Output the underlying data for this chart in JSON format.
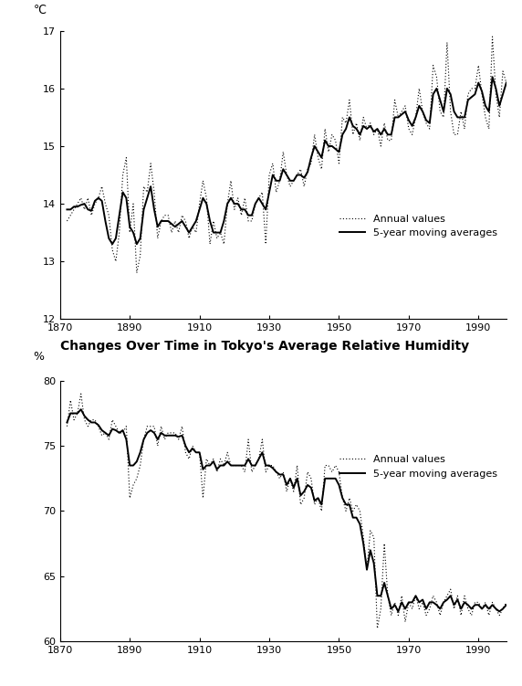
{
  "temp_years": [
    1872,
    1873,
    1874,
    1875,
    1876,
    1877,
    1878,
    1879,
    1880,
    1881,
    1882,
    1883,
    1884,
    1885,
    1886,
    1887,
    1888,
    1889,
    1890,
    1891,
    1892,
    1893,
    1894,
    1895,
    1896,
    1897,
    1898,
    1899,
    1900,
    1901,
    1902,
    1903,
    1904,
    1905,
    1906,
    1907,
    1908,
    1909,
    1910,
    1911,
    1912,
    1913,
    1914,
    1915,
    1916,
    1917,
    1918,
    1919,
    1920,
    1921,
    1922,
    1923,
    1924,
    1925,
    1926,
    1927,
    1928,
    1929,
    1930,
    1931,
    1932,
    1933,
    1934,
    1935,
    1936,
    1937,
    1938,
    1939,
    1940,
    1941,
    1942,
    1943,
    1944,
    1945,
    1946,
    1947,
    1948,
    1949,
    1950,
    1951,
    1952,
    1953,
    1954,
    1955,
    1956,
    1957,
    1958,
    1959,
    1960,
    1961,
    1962,
    1963,
    1964,
    1965,
    1966,
    1967,
    1968,
    1969,
    1970,
    1971,
    1972,
    1973,
    1974,
    1975,
    1976,
    1977,
    1978,
    1979,
    1980,
    1981,
    1982,
    1983,
    1984,
    1985,
    1986,
    1987,
    1988,
    1989,
    1990,
    1991,
    1992,
    1993,
    1994,
    1995,
    1996,
    1997,
    1998
  ],
  "temp_annual": [
    13.7,
    13.8,
    13.9,
    14.0,
    14.1,
    13.9,
    14.1,
    13.8,
    14.0,
    14.1,
    14.3,
    14.0,
    13.8,
    13.2,
    13.0,
    13.5,
    14.5,
    14.8,
    13.5,
    14.0,
    12.8,
    13.1,
    14.3,
    14.2,
    14.7,
    14.2,
    13.4,
    13.7,
    13.8,
    13.8,
    13.5,
    13.7,
    13.5,
    13.8,
    13.7,
    13.4,
    13.6,
    13.5,
    14.0,
    14.4,
    14.1,
    13.3,
    13.7,
    13.4,
    13.5,
    13.3,
    14.0,
    14.4,
    13.9,
    14.1,
    13.8,
    14.1,
    13.7,
    13.7,
    14.0,
    14.1,
    14.2,
    13.3,
    14.5,
    14.7,
    14.2,
    14.4,
    14.9,
    14.5,
    14.3,
    14.4,
    14.5,
    14.6,
    14.3,
    14.6,
    14.7,
    15.2,
    14.8,
    14.6,
    15.3,
    14.9,
    15.2,
    15.1,
    14.7,
    15.5,
    15.4,
    15.8,
    15.2,
    15.4,
    15.1,
    15.5,
    15.3,
    15.4,
    15.2,
    15.3,
    15.0,
    15.4,
    15.1,
    15.1,
    15.8,
    15.5,
    15.6,
    15.7,
    15.3,
    15.2,
    15.5,
    16.0,
    15.6,
    15.4,
    15.3,
    16.4,
    16.2,
    15.6,
    15.5,
    16.8,
    15.6,
    15.2,
    15.2,
    15.6,
    15.3,
    15.9,
    16.0,
    16.0,
    16.4,
    15.9,
    15.5,
    15.3,
    16.9,
    15.9,
    15.5,
    16.3,
    16.1
  ],
  "temp_mavg": [
    13.9,
    13.9,
    13.95,
    13.95,
    13.98,
    14.0,
    13.9,
    13.88,
    14.05,
    14.1,
    14.05,
    13.7,
    13.4,
    13.3,
    13.4,
    13.8,
    14.2,
    14.1,
    13.6,
    13.5,
    13.3,
    13.4,
    13.9,
    14.1,
    14.3,
    13.9,
    13.6,
    13.7,
    13.7,
    13.7,
    13.65,
    13.6,
    13.65,
    13.7,
    13.6,
    13.5,
    13.6,
    13.7,
    13.9,
    14.1,
    14.0,
    13.7,
    13.5,
    13.5,
    13.5,
    13.7,
    14.0,
    14.1,
    14.0,
    14.0,
    13.9,
    13.9,
    13.8,
    13.8,
    14.0,
    14.1,
    14.0,
    13.9,
    14.2,
    14.5,
    14.4,
    14.4,
    14.6,
    14.5,
    14.4,
    14.4,
    14.5,
    14.5,
    14.45,
    14.55,
    14.8,
    15.0,
    14.9,
    14.8,
    15.1,
    15.0,
    15.0,
    14.95,
    14.9,
    15.2,
    15.3,
    15.5,
    15.35,
    15.3,
    15.2,
    15.35,
    15.3,
    15.35,
    15.25,
    15.3,
    15.2,
    15.3,
    15.2,
    15.2,
    15.5,
    15.5,
    15.55,
    15.6,
    15.45,
    15.35,
    15.5,
    15.7,
    15.6,
    15.45,
    15.4,
    15.9,
    16.0,
    15.8,
    15.6,
    16.0,
    15.9,
    15.6,
    15.5,
    15.5,
    15.5,
    15.8,
    15.85,
    15.9,
    16.1,
    15.95,
    15.7,
    15.6,
    16.2,
    16.0,
    15.7,
    15.9,
    16.1
  ],
  "hum_years": [
    1872,
    1873,
    1874,
    1875,
    1876,
    1877,
    1878,
    1879,
    1880,
    1881,
    1882,
    1883,
    1884,
    1885,
    1886,
    1887,
    1888,
    1889,
    1890,
    1891,
    1892,
    1893,
    1894,
    1895,
    1896,
    1897,
    1898,
    1899,
    1900,
    1901,
    1902,
    1903,
    1904,
    1905,
    1906,
    1907,
    1908,
    1909,
    1910,
    1911,
    1912,
    1913,
    1914,
    1915,
    1916,
    1917,
    1918,
    1919,
    1920,
    1921,
    1922,
    1923,
    1924,
    1925,
    1926,
    1927,
    1928,
    1929,
    1930,
    1931,
    1932,
    1933,
    1934,
    1935,
    1936,
    1937,
    1938,
    1939,
    1940,
    1941,
    1942,
    1943,
    1944,
    1945,
    1946,
    1947,
    1948,
    1949,
    1950,
    1951,
    1952,
    1953,
    1954,
    1955,
    1956,
    1957,
    1958,
    1959,
    1960,
    1961,
    1962,
    1963,
    1964,
    1965,
    1966,
    1967,
    1968,
    1969,
    1970,
    1971,
    1972,
    1973,
    1974,
    1975,
    1976,
    1977,
    1978,
    1979,
    1980,
    1981,
    1982,
    1983,
    1984,
    1985,
    1986,
    1987,
    1988,
    1989,
    1990,
    1991,
    1992,
    1993,
    1994,
    1995,
    1996,
    1997,
    1998
  ],
  "hum_annual": [
    76.5,
    78.5,
    77.0,
    77.5,
    79.0,
    77.0,
    76.5,
    77.0,
    77.0,
    76.5,
    75.8,
    76.0,
    75.5,
    77.0,
    76.5,
    76.0,
    76.0,
    76.5,
    71.0,
    72.0,
    72.5,
    73.5,
    75.5,
    76.5,
    76.5,
    76.5,
    75.0,
    76.5,
    75.5,
    76.0,
    76.0,
    76.0,
    75.5,
    76.5,
    74.5,
    74.0,
    75.0,
    74.5,
    74.5,
    71.0,
    74.0,
    73.5,
    74.0,
    73.0,
    74.0,
    73.5,
    74.5,
    73.5,
    73.5,
    73.5,
    73.5,
    73.0,
    75.5,
    73.0,
    73.5,
    74.0,
    75.5,
    73.0,
    73.5,
    73.5,
    73.0,
    72.5,
    73.0,
    71.5,
    72.5,
    71.5,
    73.5,
    70.5,
    71.0,
    73.0,
    72.5,
    70.5,
    71.0,
    70.0,
    73.5,
    73.5,
    73.0,
    73.5,
    73.0,
    71.0,
    70.0,
    71.0,
    70.0,
    70.5,
    70.0,
    68.0,
    65.5,
    68.5,
    68.0,
    61.0,
    62.5,
    67.5,
    63.5,
    62.0,
    63.0,
    62.0,
    63.5,
    61.5,
    63.0,
    62.5,
    63.5,
    62.5,
    63.0,
    62.0,
    62.5,
    63.5,
    63.0,
    62.0,
    63.0,
    63.5,
    64.0,
    62.5,
    63.5,
    62.0,
    63.5,
    62.5,
    62.0,
    63.0,
    63.0,
    62.5,
    63.0,
    62.0,
    63.0,
    62.5,
    62.0,
    62.5,
    63.0
  ],
  "hum_mavg": [
    76.8,
    77.5,
    77.5,
    77.5,
    77.8,
    77.3,
    77.0,
    76.8,
    76.8,
    76.6,
    76.2,
    76.0,
    75.8,
    76.3,
    76.2,
    76.0,
    76.2,
    75.5,
    73.5,
    73.5,
    73.8,
    74.5,
    75.5,
    76.0,
    76.2,
    76.0,
    75.5,
    76.0,
    75.8,
    75.8,
    75.8,
    75.8,
    75.7,
    75.8,
    75.0,
    74.5,
    74.8,
    74.5,
    74.5,
    73.2,
    73.5,
    73.5,
    73.8,
    73.2,
    73.5,
    73.5,
    73.8,
    73.5,
    73.5,
    73.5,
    73.5,
    73.5,
    74.0,
    73.5,
    73.5,
    74.0,
    74.5,
    73.5,
    73.5,
    73.3,
    73.0,
    72.8,
    72.8,
    72.0,
    72.5,
    71.8,
    72.5,
    71.2,
    71.5,
    72.0,
    71.8,
    70.8,
    71.0,
    70.5,
    72.5,
    72.5,
    72.5,
    72.5,
    72.0,
    71.0,
    70.5,
    70.5,
    69.5,
    69.5,
    69.0,
    67.5,
    65.5,
    67.0,
    66.0,
    63.5,
    63.5,
    64.5,
    63.5,
    62.5,
    62.8,
    62.3,
    63.0,
    62.5,
    63.0,
    63.0,
    63.5,
    63.0,
    63.2,
    62.5,
    63.0,
    63.0,
    62.8,
    62.5,
    63.0,
    63.2,
    63.5,
    62.8,
    63.2,
    62.5,
    63.0,
    62.8,
    62.5,
    62.8,
    62.8,
    62.5,
    62.8,
    62.5,
    62.8,
    62.5,
    62.3,
    62.5,
    62.8
  ],
  "temp_ylabel": "℃",
  "temp_ylim": [
    12,
    17
  ],
  "temp_yticks": [
    12,
    13,
    14,
    15,
    16,
    17
  ],
  "hum_ylabel": "%",
  "hum_title": "Changes Over Time in Tokyo's Average Relative Humidity",
  "hum_ylim": [
    60,
    80
  ],
  "hum_yticks": [
    60,
    65,
    70,
    75,
    80
  ],
  "xlim": [
    1870,
    1998
  ],
  "xticks": [
    1870,
    1890,
    1910,
    1930,
    1950,
    1970,
    1990
  ],
  "legend_annual": "Annual values",
  "legend_mavg": "5-year moving averages",
  "line_color": "black",
  "bg_color": "white",
  "fontsize_title": 10,
  "fontsize_label": 9,
  "fontsize_tick": 8,
  "fontsize_legend": 8
}
